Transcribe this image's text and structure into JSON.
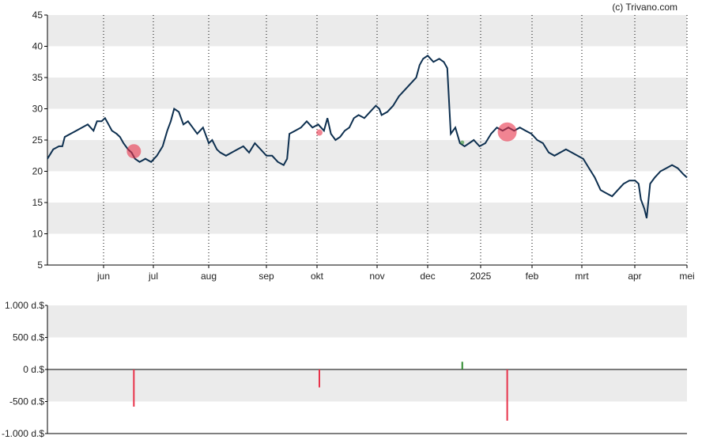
{
  "credit": "(c) Trivano.com",
  "colors": {
    "band": "#ebebeb",
    "price_line": "#0d2f4f",
    "sell_marker": "#e8324a",
    "buy_marker": "#2e8b2e",
    "grid": "#000000"
  },
  "chart_data": [
    {
      "type": "line",
      "name": "price-chart",
      "x_labels": [
        "jun",
        "jul",
        "aug",
        "sep",
        "okt",
        "nov",
        "dec",
        "2025",
        "feb",
        "mrt",
        "apr",
        "mei"
      ],
      "y_ticks": [
        "5",
        "10",
        "15",
        "20",
        "25",
        "30",
        "35",
        "40",
        "45"
      ],
      "ylim": [
        5,
        45
      ],
      "x_range_weeks": [
        0,
        52
      ],
      "grid_x": "dotted vertical at month starts",
      "series": [
        {
          "values": [
            [
              0.0,
              22.0
            ],
            [
              0.5,
              23.5
            ],
            [
              1.0,
              24.0
            ],
            [
              1.3,
              24.0
            ],
            [
              1.5,
              25.5
            ],
            [
              2.0,
              26.0
            ],
            [
              2.5,
              26.5
            ],
            [
              3.0,
              27.0
            ],
            [
              3.5,
              27.5
            ],
            [
              4.0,
              26.5
            ],
            [
              4.3,
              28.0
            ],
            [
              4.7,
              28.0
            ],
            [
              5.0,
              28.5
            ],
            [
              5.3,
              27.5
            ],
            [
              5.6,
              26.5
            ],
            [
              6.0,
              26.0
            ],
            [
              6.3,
              25.5
            ],
            [
              6.6,
              24.5
            ],
            [
              7.0,
              23.5
            ],
            [
              7.3,
              23.0
            ],
            [
              7.6,
              22.0
            ],
            [
              8.0,
              21.5
            ],
            [
              8.5,
              22.0
            ],
            [
              9.0,
              21.5
            ],
            [
              9.5,
              22.5
            ],
            [
              10.0,
              24.0
            ],
            [
              10.4,
              26.5
            ],
            [
              10.7,
              28.0
            ],
            [
              11.0,
              30.0
            ],
            [
              11.4,
              29.5
            ],
            [
              11.8,
              27.5
            ],
            [
              12.2,
              28.0
            ],
            [
              12.6,
              27.0
            ],
            [
              13.0,
              26.0
            ],
            [
              13.5,
              27.0
            ],
            [
              14.0,
              24.5
            ],
            [
              14.3,
              25.0
            ],
            [
              14.7,
              23.5
            ],
            [
              15.0,
              23.0
            ],
            [
              15.5,
              22.5
            ],
            [
              16.0,
              23.0
            ],
            [
              16.5,
              23.5
            ],
            [
              17.0,
              24.0
            ],
            [
              17.5,
              23.0
            ],
            [
              18.0,
              24.5
            ],
            [
              18.5,
              23.5
            ],
            [
              19.0,
              22.5
            ],
            [
              19.5,
              22.5
            ],
            [
              20.0,
              21.5
            ],
            [
              20.5,
              21.0
            ],
            [
              20.8,
              22.0
            ],
            [
              21.0,
              26.0
            ],
            [
              21.5,
              26.5
            ],
            [
              22.0,
              27.0
            ],
            [
              22.5,
              28.0
            ],
            [
              23.0,
              27.0
            ],
            [
              23.5,
              27.5
            ],
            [
              24.0,
              26.5
            ],
            [
              24.3,
              28.5
            ],
            [
              24.6,
              26.0
            ],
            [
              25.0,
              25.0
            ],
            [
              25.4,
              25.5
            ],
            [
              25.8,
              26.5
            ],
            [
              26.2,
              27.0
            ],
            [
              26.6,
              28.5
            ],
            [
              27.0,
              29.0
            ],
            [
              27.5,
              28.5
            ],
            [
              28.0,
              29.5
            ],
            [
              28.5,
              30.5
            ],
            [
              28.8,
              30.0
            ],
            [
              29.0,
              29.0
            ],
            [
              29.5,
              29.5
            ],
            [
              30.0,
              30.5
            ],
            [
              30.5,
              32.0
            ],
            [
              31.0,
              33.0
            ],
            [
              31.5,
              34.0
            ],
            [
              32.0,
              35.0
            ],
            [
              32.3,
              37.0
            ],
            [
              32.6,
              38.0
            ],
            [
              33.0,
              38.5
            ],
            [
              33.5,
              37.5
            ],
            [
              34.0,
              38.0
            ],
            [
              34.4,
              37.5
            ],
            [
              34.7,
              36.5
            ],
            [
              35.0,
              26.0
            ],
            [
              35.4,
              27.0
            ],
            [
              35.8,
              24.5
            ],
            [
              36.2,
              24.0
            ],
            [
              36.6,
              24.5
            ],
            [
              37.0,
              25.0
            ],
            [
              37.5,
              24.0
            ],
            [
              38.0,
              24.5
            ],
            [
              38.5,
              26.0
            ],
            [
              39.0,
              27.0
            ],
            [
              39.5,
              26.5
            ],
            [
              40.0,
              27.0
            ],
            [
              40.5,
              26.5
            ],
            [
              41.0,
              27.0
            ],
            [
              41.5,
              26.5
            ],
            [
              42.0,
              26.0
            ],
            [
              42.5,
              25.0
            ],
            [
              43.0,
              24.5
            ],
            [
              43.5,
              23.0
            ],
            [
              44.0,
              22.5
            ],
            [
              44.5,
              23.0
            ],
            [
              45.0,
              23.5
            ],
            [
              45.5,
              23.0
            ],
            [
              46.0,
              22.5
            ],
            [
              46.5,
              22.0
            ],
            [
              47.0,
              20.5
            ],
            [
              47.5,
              19.0
            ],
            [
              48.0,
              17.0
            ],
            [
              48.5,
              16.5
            ],
            [
              49.0,
              16.0
            ],
            [
              49.5,
              17.0
            ],
            [
              50.0,
              18.0
            ],
            [
              50.5,
              18.5
            ],
            [
              51.0,
              18.5
            ],
            [
              51.3,
              18.0
            ],
            [
              51.5,
              15.5
            ],
            [
              51.8,
              14.0
            ],
            [
              52.0,
              12.5
            ],
            [
              52.3,
              18.0
            ],
            [
              52.7,
              19.0
            ],
            [
              53.2,
              20.0
            ],
            [
              53.7,
              20.5
            ],
            [
              54.2,
              21.0
            ],
            [
              54.7,
              20.5
            ],
            [
              55.2,
              19.5
            ],
            [
              55.5,
              19.0
            ]
          ]
        }
      ],
      "markers": [
        {
          "x": 7.5,
          "y": 23.2,
          "size": "large",
          "kind": "sell"
        },
        {
          "x": 23.6,
          "y": 26.2,
          "size": "small",
          "kind": "sell"
        },
        {
          "x": 36.0,
          "y": 24.6,
          "size": "small",
          "kind": "buy"
        },
        {
          "x": 39.9,
          "y": 26.3,
          "size": "large",
          "kind": "sell"
        }
      ]
    },
    {
      "type": "bar",
      "name": "insider-volume-chart",
      "y_ticks": [
        "1.000 d.$",
        "500 d.$",
        "0 d.$",
        "-500 d.$",
        "-1.000 d.$"
      ],
      "ylim": [
        -1000,
        1000
      ],
      "x_range_weeks": [
        0,
        52
      ],
      "bars": [
        {
          "x": 7.5,
          "value": -580
        },
        {
          "x": 23.6,
          "value": -280
        },
        {
          "x": 36.0,
          "value": 120
        },
        {
          "x": 39.9,
          "value": -800
        }
      ]
    }
  ]
}
